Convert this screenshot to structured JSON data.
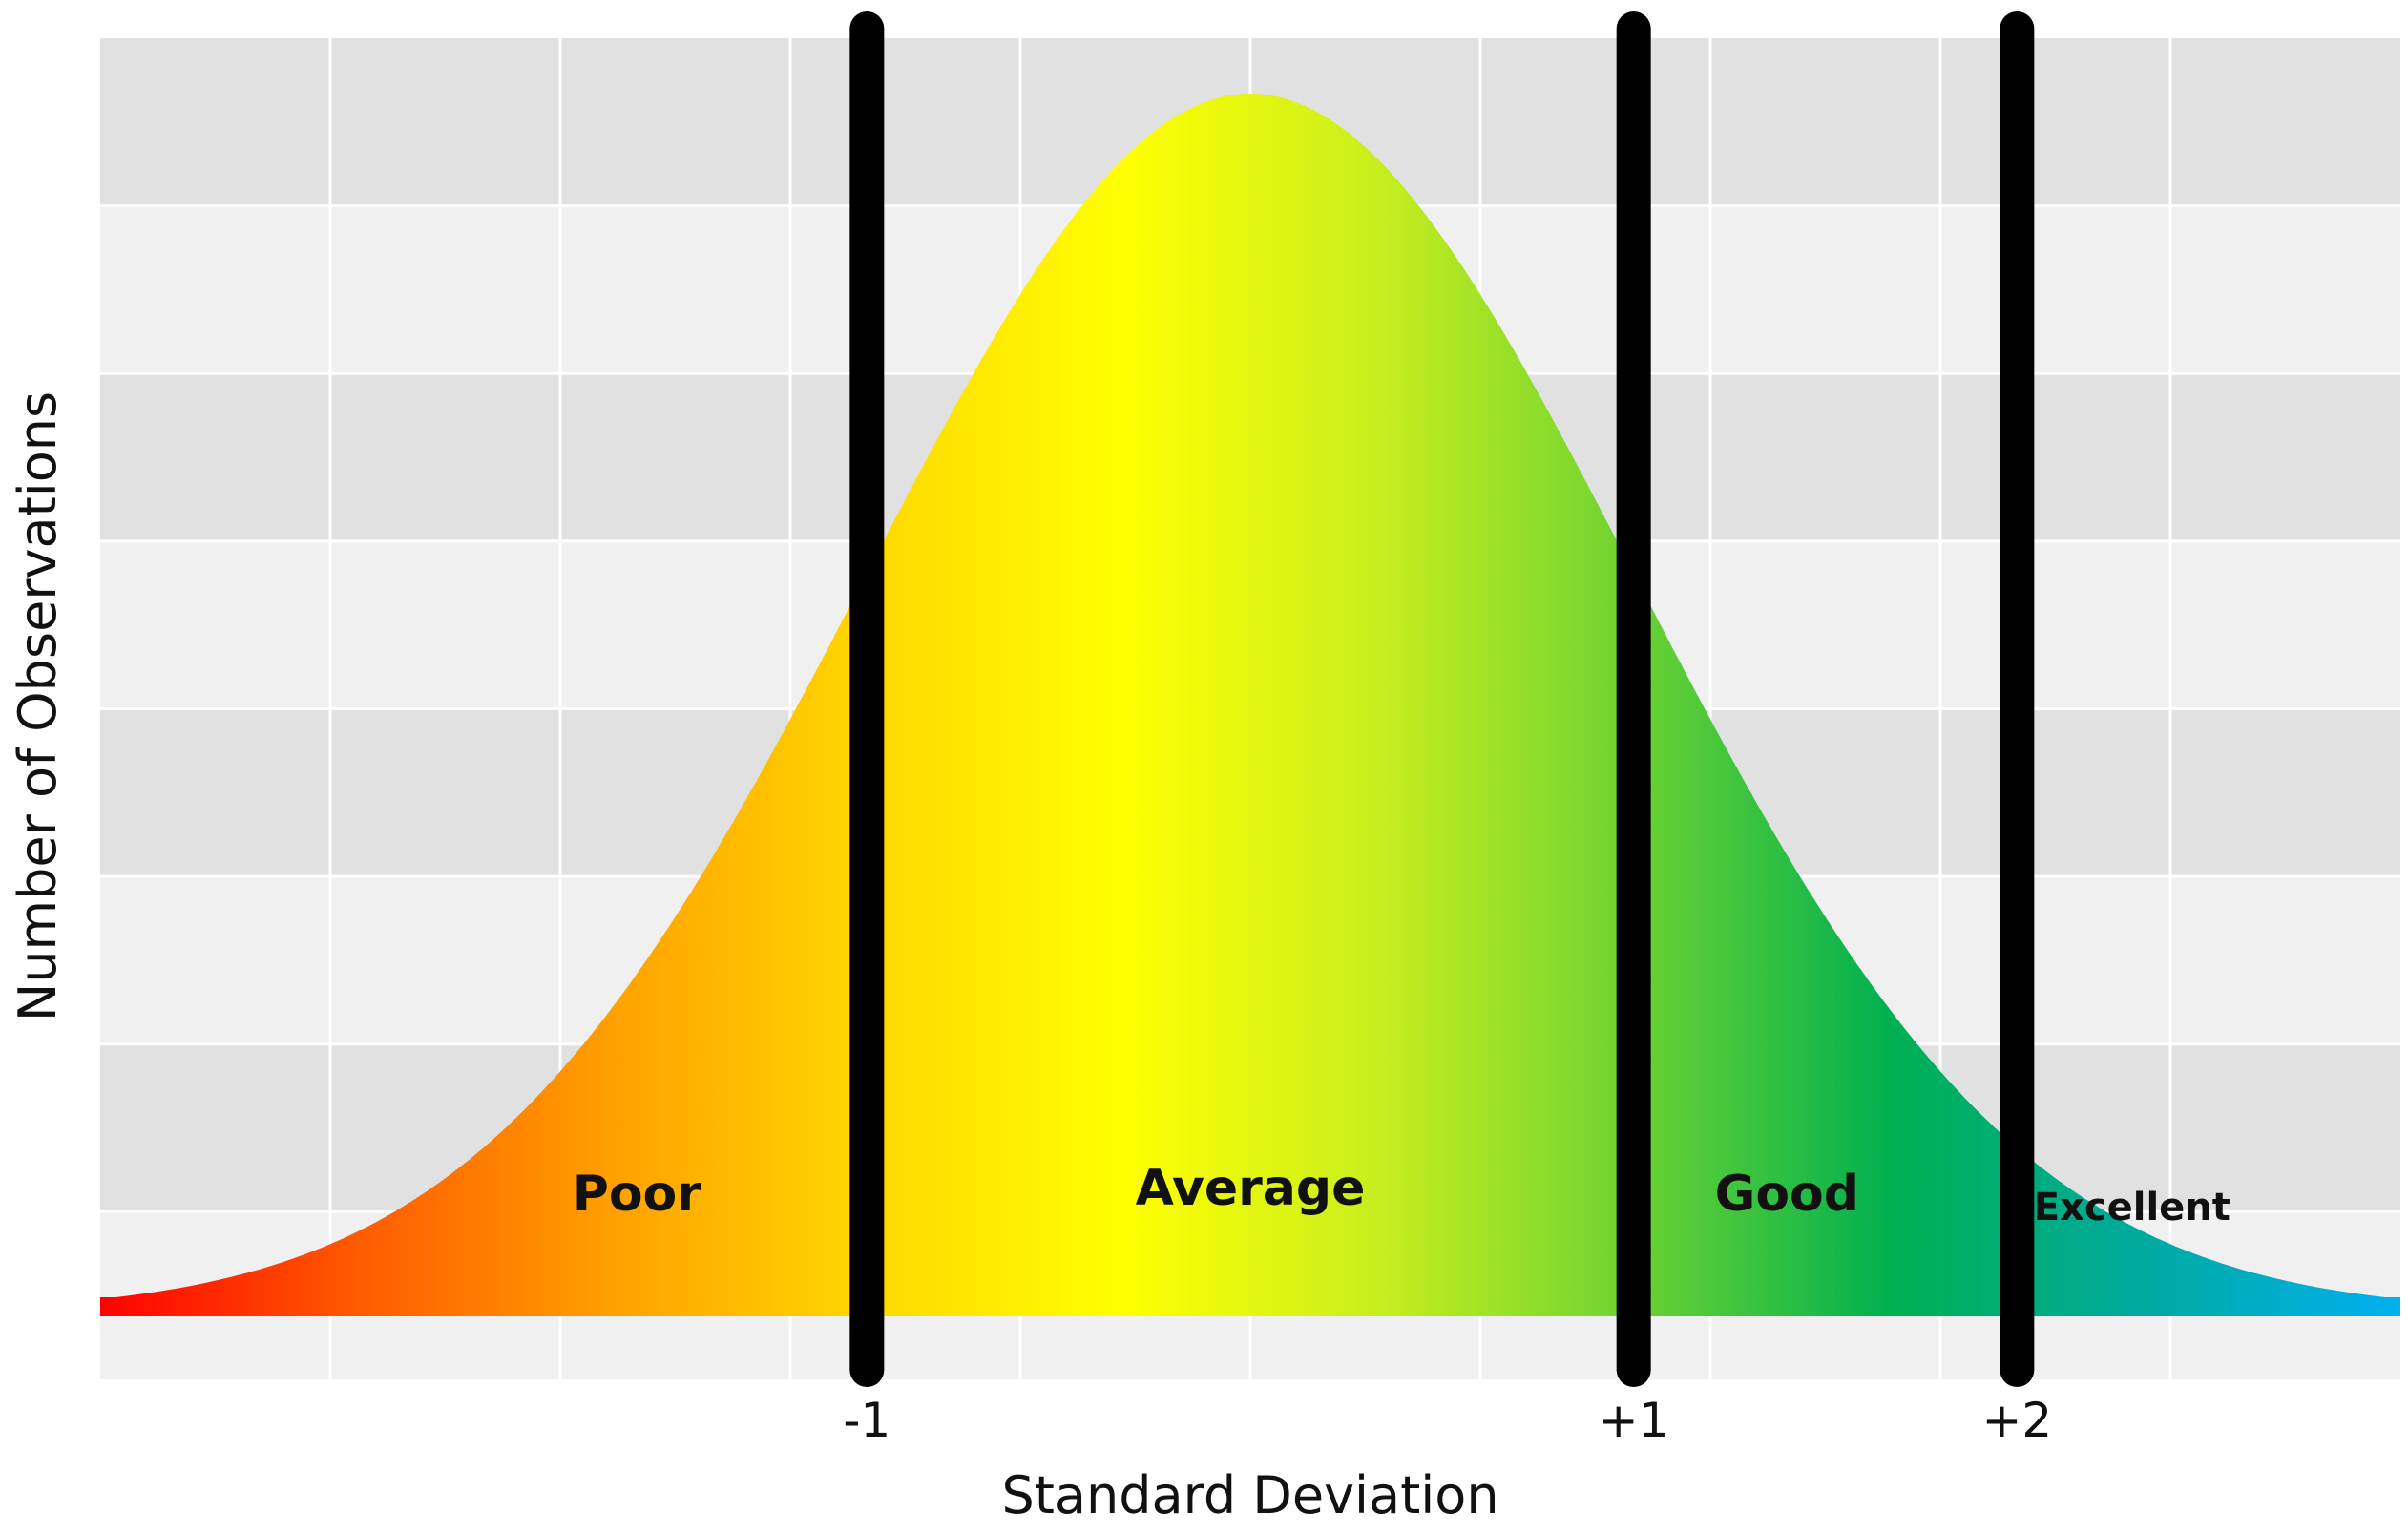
{
  "chart_data": {
    "type": "area",
    "xlabel": "Standard Deviation",
    "ylabel": "Number of Observations",
    "xlim": [
      -3,
      3
    ],
    "x_ticks": [
      {
        "value": -1,
        "label": "-1"
      },
      {
        "value": 1,
        "label": "+1"
      },
      {
        "value": 2,
        "label": "+2"
      }
    ],
    "boundaries": [
      -1,
      1,
      2
    ],
    "zones": [
      {
        "label": "Poor",
        "from": -3,
        "to": -1,
        "label_x": -1.6
      },
      {
        "label": "Average",
        "from": -1,
        "to": 1,
        "label_x": 0.0
      },
      {
        "label": "Good",
        "from": 1,
        "to": 2,
        "label_x": 1.4
      },
      {
        "label": "Excellent",
        "from": 2,
        "to": 3,
        "label_x": 2.3
      }
    ],
    "curve": "normal distribution",
    "grid": true,
    "background": "alternating gray bands",
    "gradient_colors": [
      "#ff0000",
      "#ff5a00",
      "#ffa000",
      "#ffd700",
      "#ffff00",
      "#c8ee1e",
      "#6cd232",
      "#00b050",
      "#00aaa0",
      "#00b0f0"
    ],
    "boundary_color": "#000000"
  }
}
